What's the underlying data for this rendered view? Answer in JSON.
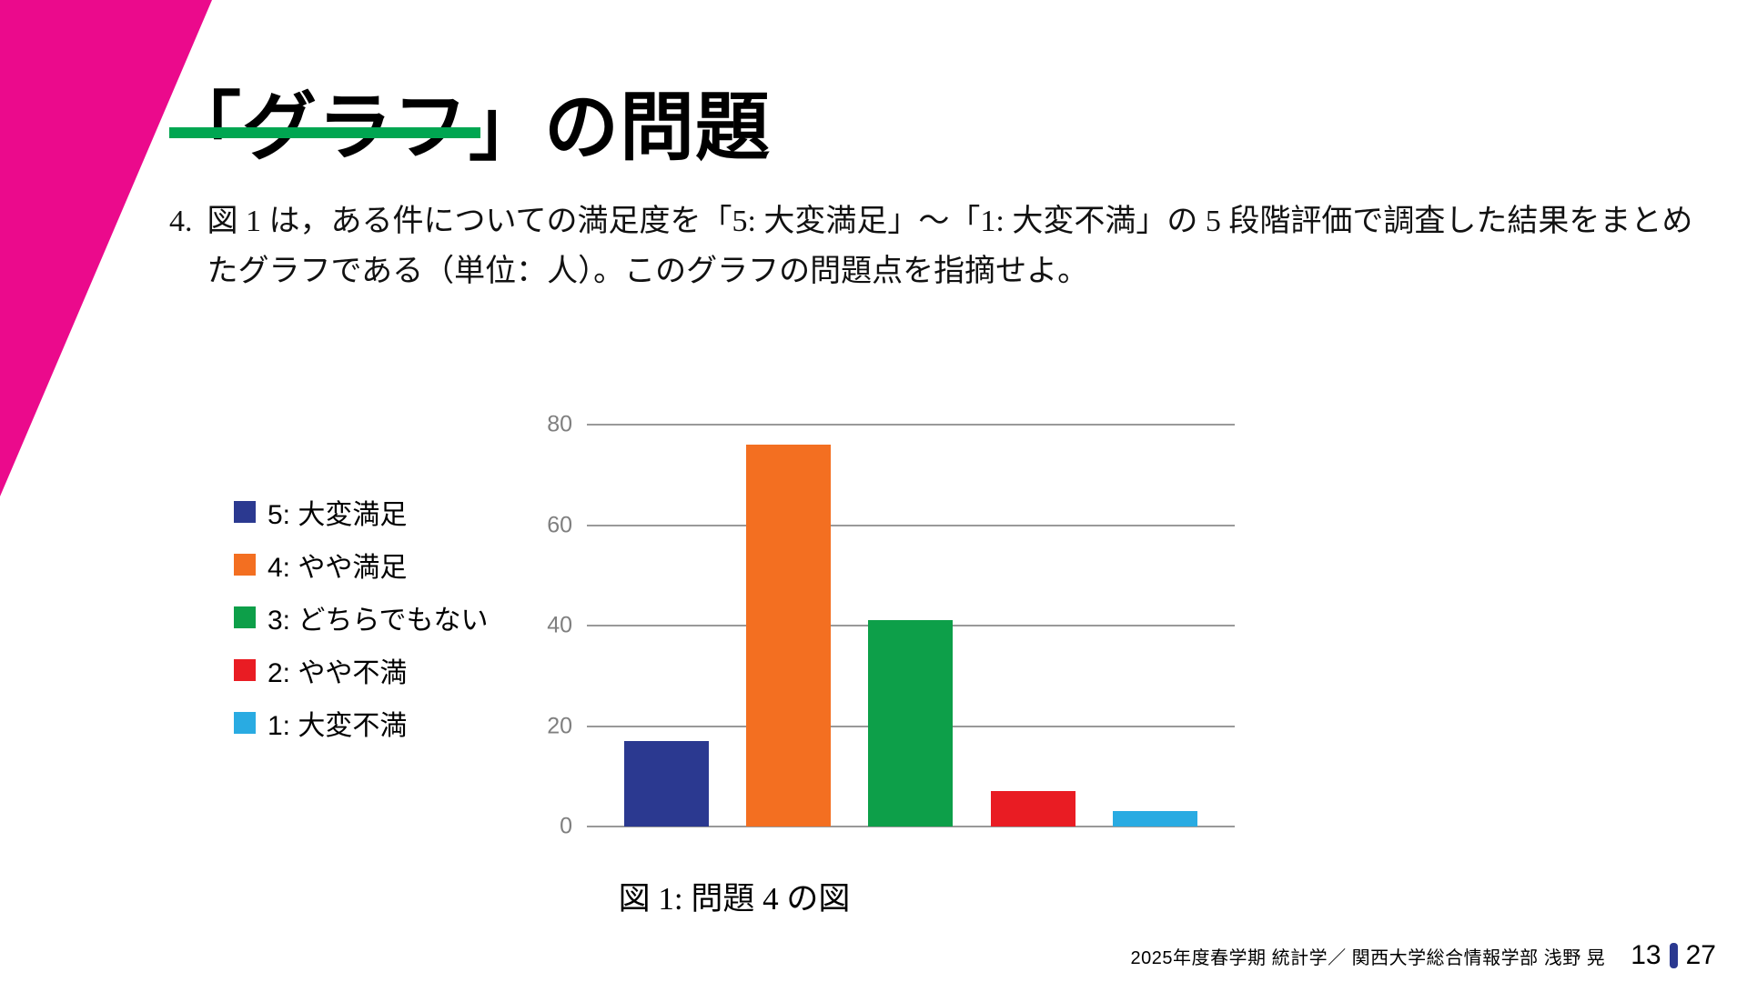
{
  "slide": {
    "title": "「グラフ」の問題",
    "problem": {
      "number": "4.",
      "text": "図 1 は，ある件についての満足度を「5: 大変満足」〜「1: 大変不満」の 5 段階評価で調査した結果をまとめたグラフである（単位：人）。このグラフの問題点を指摘せよ。"
    },
    "caption": "図 1: 問題 4 の図",
    "footer": {
      "course_info": "2025年度春学期 統計学／ 関西大学総合情報学部 浅野 晃",
      "page_current": "13",
      "page_total": "27"
    }
  },
  "colors": {
    "accent_magenta": "#EB0A8C",
    "accent_green": "#00A651",
    "page_divider": "#2B3990",
    "gridline": "#999999",
    "tick_label": "#7F7F7F"
  },
  "chart_data": {
    "type": "bar",
    "categories": [
      "5: 大変満足",
      "4: やや満足",
      "3: どちらでもない",
      "2: やや不満",
      "1: 大変不満"
    ],
    "values": [
      17,
      76,
      41,
      7,
      3
    ],
    "bar_colors": [
      "#2B3990",
      "#F36F21",
      "#0D9F49",
      "#E91C23",
      "#29ABE2"
    ],
    "title": "",
    "xlabel": "",
    "ylabel": "",
    "ylim": [
      0,
      80
    ],
    "yticks": [
      0,
      20,
      40,
      60,
      80
    ],
    "grid": true,
    "legend_position": "left"
  }
}
